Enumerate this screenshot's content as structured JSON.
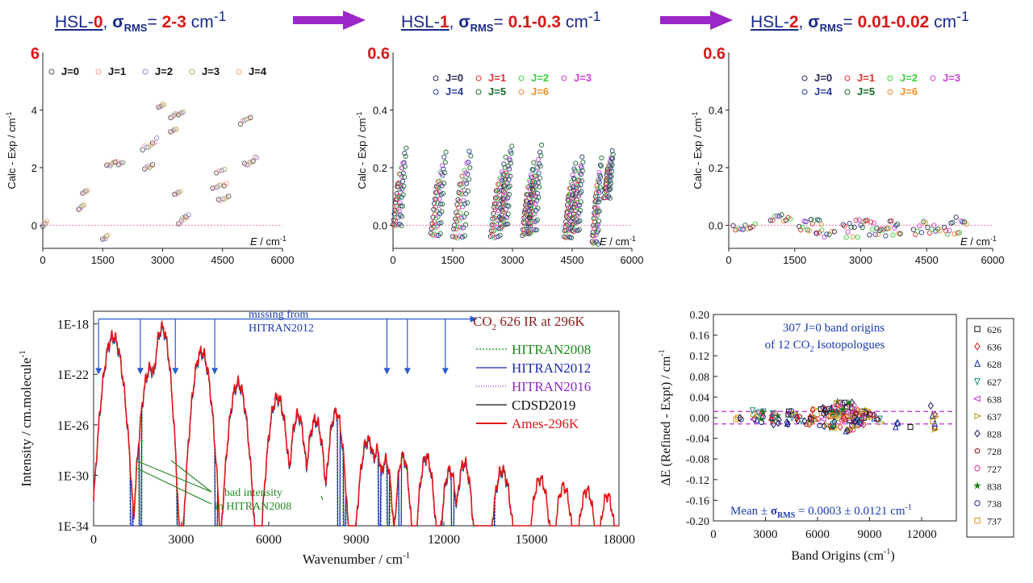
{
  "headers": [
    {
      "prefix": "HSL-",
      "num": "0",
      "sigma": "σ",
      "sub": "RMS",
      "eq": "= ",
      "value": "2-3",
      "unit": " cm",
      "sup": "-1"
    },
    {
      "prefix": "HSL-",
      "num": "1",
      "sigma": "σ",
      "sub": "RMS",
      "eq": "= ",
      "value": "0.1-0.3",
      "unit": " cm",
      "sup": "-1"
    },
    {
      "prefix": "HSL-",
      "num": "2",
      "sigma": "σ",
      "sub": "RMS",
      "eq": "= ",
      "value": "0.01-0.02",
      "unit": " cm",
      "sup": "-1"
    }
  ],
  "colors": {
    "arrow": "#9b27c9",
    "header_red": "#d81818",
    "header_blue": "#1a2a8a"
  },
  "chart_data": [
    {
      "id": "hsl0",
      "type": "scatter",
      "ylabel": "Calc - Exp / cm",
      "ylabel_sup": "-1",
      "xlabel": "E",
      "xlabel_unit": " / cm",
      "xlabel_sup": "-1",
      "top_label": "6",
      "xlim": [
        0,
        6000
      ],
      "ylim": [
        -0.8,
        6
      ],
      "xticks": [
        0,
        1500,
        3000,
        4500,
        6000
      ],
      "yticks": [
        0,
        2,
        4
      ],
      "ref_line": 0,
      "legend": [
        {
          "name": "J=0",
          "color": "#555555"
        },
        {
          "name": "J=1",
          "color": "#ff9999"
        },
        {
          "name": "J=2",
          "color": "#8a8ad8"
        },
        {
          "name": "J=3",
          "color": "#9ab86a"
        },
        {
          "name": "J=4",
          "color": "#f0b080"
        }
      ],
      "clusters": [
        {
          "x": 0,
          "y": 0.0,
          "dx": 100,
          "dy": 0.12,
          "n": 5
        },
        {
          "x": 900,
          "y": 0.55,
          "dx": 130,
          "dy": 0.15,
          "n": 5
        },
        {
          "x": 1000,
          "y": 1.1,
          "dx": 120,
          "dy": 0.12,
          "n": 5
        },
        {
          "x": 1500,
          "y": -0.5,
          "dx": 130,
          "dy": 0.15,
          "n": 5
        },
        {
          "x": 1600,
          "y": 2.05,
          "dx": 250,
          "dy": 0.15,
          "n": 7
        },
        {
          "x": 1900,
          "y": 2.1,
          "dx": 110,
          "dy": 0.08,
          "n": 4
        },
        {
          "x": 2500,
          "y": 2.65,
          "dx": 350,
          "dy": 0.3,
          "n": 8
        },
        {
          "x": 2550,
          "y": 1.95,
          "dx": 200,
          "dy": 0.15,
          "n": 6
        },
        {
          "x": 2900,
          "y": 4.1,
          "dx": 130,
          "dy": 0.1,
          "n": 5
        },
        {
          "x": 3200,
          "y": 3.75,
          "dx": 320,
          "dy": 0.2,
          "n": 9
        },
        {
          "x": 3200,
          "y": 3.25,
          "dx": 150,
          "dy": 0.1,
          "n": 5
        },
        {
          "x": 3300,
          "y": 1.05,
          "dx": 150,
          "dy": 0.12,
          "n": 5
        },
        {
          "x": 3400,
          "y": 0.05,
          "dx": 250,
          "dy": 0.3,
          "n": 8
        },
        {
          "x": 4250,
          "y": 1.3,
          "dx": 350,
          "dy": 0.12,
          "n": 7
        },
        {
          "x": 4350,
          "y": 1.85,
          "dx": 200,
          "dy": 0.12,
          "n": 4
        },
        {
          "x": 4400,
          "y": 0.85,
          "dx": 250,
          "dy": 0.15,
          "n": 6
        },
        {
          "x": 4950,
          "y": 3.55,
          "dx": 250,
          "dy": 0.15,
          "n": 6
        },
        {
          "x": 5050,
          "y": 2.1,
          "dx": 300,
          "dy": 0.3,
          "n": 8
        }
      ]
    },
    {
      "id": "hsl1",
      "type": "scatter",
      "ylabel": "Calc - Exp / cm",
      "ylabel_sup": "-1",
      "xlabel": "E",
      "xlabel_unit": " / cm",
      "xlabel_sup": "-1",
      "top_label": "0.6",
      "xlim": [
        0,
        6000
      ],
      "ylim": [
        -0.08,
        0.6
      ],
      "xticks": [
        0,
        1500,
        3000,
        4500,
        6000
      ],
      "yticks": [
        0.0,
        0.2,
        0.4
      ],
      "ref_line": 0,
      "legend": [
        {
          "name": "J=0",
          "color": "#2a2a5a"
        },
        {
          "name": "J=1",
          "color": "#e23030"
        },
        {
          "name": "J=2",
          "color": "#3ed03e"
        },
        {
          "name": "J=3",
          "color": "#d040d8"
        },
        {
          "name": "J=4",
          "color": "#2a3aa0"
        },
        {
          "name": "J=5",
          "color": "#1a6a2a"
        },
        {
          "name": "J=6",
          "color": "#f0902a"
        }
      ],
      "stripes": [
        {
          "x0": 0,
          "x1": 350,
          "y0": 0.0,
          "y1": 0.27
        },
        {
          "x0": 950,
          "x1": 1350,
          "y0": -0.03,
          "y1": 0.26
        },
        {
          "x0": 1500,
          "x1": 2000,
          "y0": -0.04,
          "y1": 0.28
        },
        {
          "x0": 2450,
          "x1": 2850,
          "y0": -0.04,
          "y1": 0.24
        },
        {
          "x0": 2700,
          "x1": 3000,
          "y0": 0.0,
          "y1": 0.28
        },
        {
          "x0": 3250,
          "x1": 3550,
          "y0": -0.03,
          "y1": 0.22
        },
        {
          "x0": 3400,
          "x1": 3750,
          "y0": -0.02,
          "y1": 0.28
        },
        {
          "x0": 4300,
          "x1": 4600,
          "y0": -0.04,
          "y1": 0.22
        },
        {
          "x0": 4500,
          "x1": 4800,
          "y0": -0.02,
          "y1": 0.26
        },
        {
          "x0": 5000,
          "x1": 5250,
          "y0": -0.06,
          "y1": 0.24
        },
        {
          "x0": 5300,
          "x1": 5550,
          "y0": 0.1,
          "y1": 0.27
        }
      ]
    },
    {
      "id": "hsl2",
      "type": "scatter",
      "ylabel": "Calc - Exp / cm",
      "ylabel_sup": "-1",
      "xlabel": "E",
      "xlabel_unit": " / cm",
      "xlabel_sup": "-1",
      "top_label": "0.6",
      "xlim": [
        0,
        6000
      ],
      "ylim": [
        -0.08,
        0.6
      ],
      "xticks": [
        0,
        1500,
        3000,
        4500,
        6000
      ],
      "yticks": [
        0.0,
        0.2,
        0.4
      ],
      "ref_line": 0,
      "legend": [
        {
          "name": "J=0",
          "color": "#2a2a5a"
        },
        {
          "name": "J=1",
          "color": "#e23030"
        },
        {
          "name": "J=2",
          "color": "#3ed03e"
        },
        {
          "name": "J=3",
          "color": "#d040d8"
        },
        {
          "name": "J=4",
          "color": "#2a3aa0"
        },
        {
          "name": "J=5",
          "color": "#1a6a2a"
        },
        {
          "name": "J=6",
          "color": "#f0902a"
        }
      ],
      "clusters": [
        {
          "x": 100,
          "y": 0.0,
          "dx": 500,
          "dy": 0.02,
          "n": 10
        },
        {
          "x": 950,
          "y": 0.025,
          "dx": 450,
          "dy": 0.02,
          "n": 10
        },
        {
          "x": 1600,
          "y": -0.01,
          "dx": 500,
          "dy": 0.04,
          "n": 14
        },
        {
          "x": 2000,
          "y": -0.03,
          "dx": 400,
          "dy": 0.02,
          "n": 8
        },
        {
          "x": 2600,
          "y": -0.01,
          "dx": 550,
          "dy": 0.04,
          "n": 16
        },
        {
          "x": 3200,
          "y": -0.005,
          "dx": 700,
          "dy": 0.04,
          "n": 22
        },
        {
          "x": 4200,
          "y": -0.01,
          "dx": 600,
          "dy": 0.03,
          "n": 14
        },
        {
          "x": 4900,
          "y": 0.0,
          "dx": 500,
          "dy": 0.04,
          "n": 14
        }
      ]
    },
    {
      "id": "spectrum",
      "type": "line",
      "title": "CO",
      "title_sub": "2",
      "title_rest": " 626 IR at 296K",
      "xlabel": "Wavenumber / cm",
      "xlabel_sup": "-1",
      "ylabel": "Intensity / cm.molecule",
      "ylabel_sup": "-1",
      "log_y": true,
      "xlim": [
        0,
        18000
      ],
      "ylim_exp": [
        -34,
        -17
      ],
      "xticks": [
        0,
        3000,
        6000,
        9000,
        12000,
        15000,
        18000
      ],
      "yticks": [
        "1E-34",
        "1E-30",
        "1E-26",
        "1E-22",
        "1E-18"
      ],
      "yticks_exp": [
        -34,
        -30,
        -26,
        -22,
        -18
      ],
      "legend": [
        {
          "name": "HITRAN2008",
          "color": "#1a8a1a",
          "dash": "2,2"
        },
        {
          "name": "HITRAN2012",
          "color": "#1a2ab0",
          "dash": ""
        },
        {
          "name": "HITRAN2016",
          "color": "#8a2ad0",
          "dash": "1,2"
        },
        {
          "name": "CDSD2019",
          "color": "#111111",
          "dash": ""
        },
        {
          "name": "Ames-296K",
          "color": "#e01818",
          "dash": ""
        }
      ],
      "bands": [
        {
          "x": 667,
          "peak": -19.0,
          "w": 330
        },
        {
          "x": 1950,
          "peak": -21.5,
          "w": 300
        },
        {
          "x": 2349,
          "peak": -18.3,
          "w": 260
        },
        {
          "x": 3700,
          "peak": -20.2,
          "w": 300
        },
        {
          "x": 4950,
          "peak": -22.7,
          "w": 300
        },
        {
          "x": 6300,
          "peak": -23.8,
          "w": 300
        },
        {
          "x": 7000,
          "peak": -25.2,
          "w": 250
        },
        {
          "x": 7600,
          "peak": -25.6,
          "w": 280
        },
        {
          "x": 8300,
          "peak": -25.0,
          "w": 250
        },
        {
          "x": 9400,
          "peak": -27.2,
          "w": 280
        },
        {
          "x": 9700,
          "peak": -28.0,
          "w": 200
        },
        {
          "x": 10000,
          "peak": -28.8,
          "w": 220
        },
        {
          "x": 10600,
          "peak": -28.5,
          "w": 220
        },
        {
          "x": 11400,
          "peak": -28.5,
          "w": 250
        },
        {
          "x": 12200,
          "peak": -29.6,
          "w": 250
        },
        {
          "x": 12700,
          "peak": -29.0,
          "w": 250
        },
        {
          "x": 14000,
          "peak": -29.6,
          "w": 300
        },
        {
          "x": 15300,
          "peak": -30.3,
          "w": 300
        },
        {
          "x": 16100,
          "peak": -30.9,
          "w": 280
        },
        {
          "x": 16900,
          "peak": -31.2,
          "w": 280
        },
        {
          "x": 17600,
          "peak": -31.6,
          "w": 260
        }
      ],
      "dips": [
        1300,
        1600,
        2900,
        3050,
        4200,
        8400,
        8600,
        9800,
        10100,
        10500,
        11000,
        11900,
        12300,
        13700
      ],
      "missing_label": "missing from\nHITRAN2012",
      "missing_arrows_x": [
        170,
        1600,
        2800,
        4150,
        10050,
        10750,
        12050
      ],
      "bad_label": "bad intensity\nin HITRAN2008"
    },
    {
      "id": "band_origins",
      "type": "scatter",
      "title_line1": "307 J=0 band origins",
      "title_line2a": "of 12 CO",
      "title_line2_sub": "2",
      "title_line2b": " Isotopologues",
      "xlabel": "Band Origins (cm",
      "xlabel_sup": "-1",
      "xlabel_end": ")",
      "ylabel": "ΔE (Refined - Expt) / cm",
      "ylabel_sup": "-1",
      "xlim": [
        0,
        14000
      ],
      "ylim": [
        -0.2,
        0.2
      ],
      "xticks": [
        0,
        3000,
        6000,
        9000,
        12000
      ],
      "yticks": [
        0.2,
        0.16,
        0.12,
        0.08,
        0.04,
        0.0,
        -0.04,
        -0.08,
        -0.12,
        -0.16,
        -0.2
      ],
      "yticks_text": [
        "0.20",
        "0.16",
        "0.12",
        "0.08",
        "0.04",
        "0.00",
        "-0.04",
        "-0.08",
        "-0.12",
        "-0.16",
        "-0.20"
      ],
      "sigma_lines": [
        0.0121,
        -0.0121
      ],
      "stat_mean": "Mean",
      "stat_pm": " ± ",
      "stat_sigma": "σ",
      "stat_sub": "RMS",
      "stat_value": " = 0.0003  ±  0.0121 cm",
      "stat_sup": "-1",
      "legend": [
        {
          "name": "626",
          "color": "#111111",
          "marker": "square"
        },
        {
          "name": "636",
          "color": "#e01818",
          "marker": "diamond"
        },
        {
          "name": "628",
          "color": "#1a2ab0",
          "marker": "triangle-up"
        },
        {
          "name": "627",
          "color": "#1a8a8a",
          "marker": "triangle-down"
        },
        {
          "name": "638",
          "color": "#c02ad0",
          "marker": "triangle-left"
        },
        {
          "name": "637",
          "color": "#b0a010",
          "marker": "triangle-right"
        },
        {
          "name": "828",
          "color": "#1a1a5a",
          "marker": "diamond"
        },
        {
          "name": "728",
          "color": "#8a1a1a",
          "marker": "pentagon"
        },
        {
          "name": "727",
          "color": "#e02a8a",
          "marker": "circle"
        },
        {
          "name": "838",
          "color": "#1a7a1a",
          "marker": "star"
        },
        {
          "name": "738",
          "color": "#1a2a8a",
          "marker": "circle"
        },
        {
          "name": "737",
          "color": "#e08a1a",
          "marker": "square"
        }
      ],
      "clusters": [
        {
          "x": 1300,
          "y": 0.0,
          "dx": 300,
          "dy": 0.01,
          "n": 4
        },
        {
          "x": 2200,
          "y": 0.005,
          "dx": 700,
          "dy": 0.03,
          "n": 14
        },
        {
          "x": 3300,
          "y": -0.002,
          "dx": 600,
          "dy": 0.025,
          "n": 12
        },
        {
          "x": 4200,
          "y": 0.0,
          "dx": 900,
          "dy": 0.03,
          "n": 16
        },
        {
          "x": 5200,
          "y": 0.002,
          "dx": 700,
          "dy": 0.03,
          "n": 14
        },
        {
          "x": 6000,
          "y": 0.0,
          "dx": 900,
          "dy": 0.04,
          "n": 24
        },
        {
          "x": 6800,
          "y": 0.003,
          "dx": 1300,
          "dy": 0.06,
          "n": 56
        },
        {
          "x": 8000,
          "y": 0.0,
          "dx": 900,
          "dy": 0.035,
          "n": 30
        },
        {
          "x": 9000,
          "y": 0.0,
          "dx": 700,
          "dy": 0.02,
          "n": 10
        },
        {
          "x": 10400,
          "y": -0.015,
          "dx": 300,
          "dy": 0.01,
          "n": 3
        },
        {
          "x": 11300,
          "y": -0.02,
          "dx": 200,
          "dy": 0.005,
          "n": 1
        },
        {
          "x": 12500,
          "y": 0.0,
          "dx": 300,
          "dy": 0.05,
          "n": 8
        }
      ]
    }
  ]
}
